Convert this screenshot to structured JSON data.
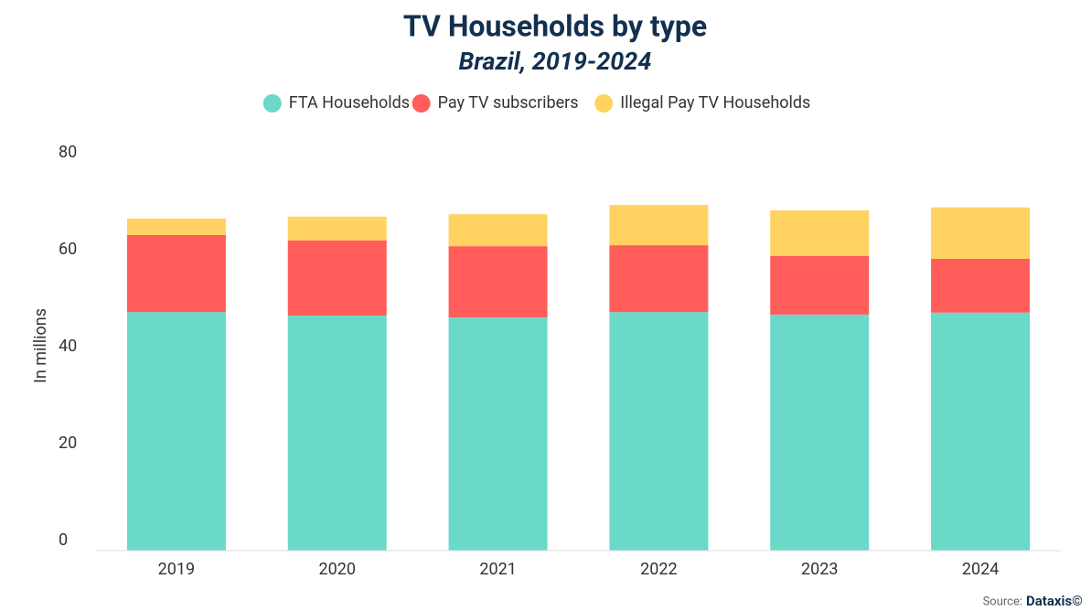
{
  "chart_data": {
    "type": "stacked_bar",
    "title": "TV Households by type",
    "subtitle": "Brazil, 2019-2024",
    "y_label": "In millions",
    "categories": [
      "2019",
      "2020",
      "2021",
      "2022",
      "2023",
      "2024"
    ],
    "series": [
      {
        "name": "FTA Households",
        "color": "#6ad9c8",
        "values": [
          49.2,
          48.5,
          48.1,
          49.2,
          48.7,
          49.1
        ]
      },
      {
        "name": "Pay TV subscribers",
        "color": "#ff5c5a",
        "values": [
          15.9,
          15.5,
          14.7,
          13.8,
          12.1,
          11.1
        ]
      },
      {
        "name": "Illegal Pay TV Households",
        "color": "#ffd262",
        "values": [
          3.4,
          4.9,
          6.6,
          8.3,
          9.4,
          10.6
        ]
      }
    ],
    "ylim": [
      0,
      80
    ],
    "yticks": [
      0,
      20,
      40,
      60,
      80
    ],
    "grid": false,
    "source_label": "Source:",
    "source": "Dataxis©"
  }
}
